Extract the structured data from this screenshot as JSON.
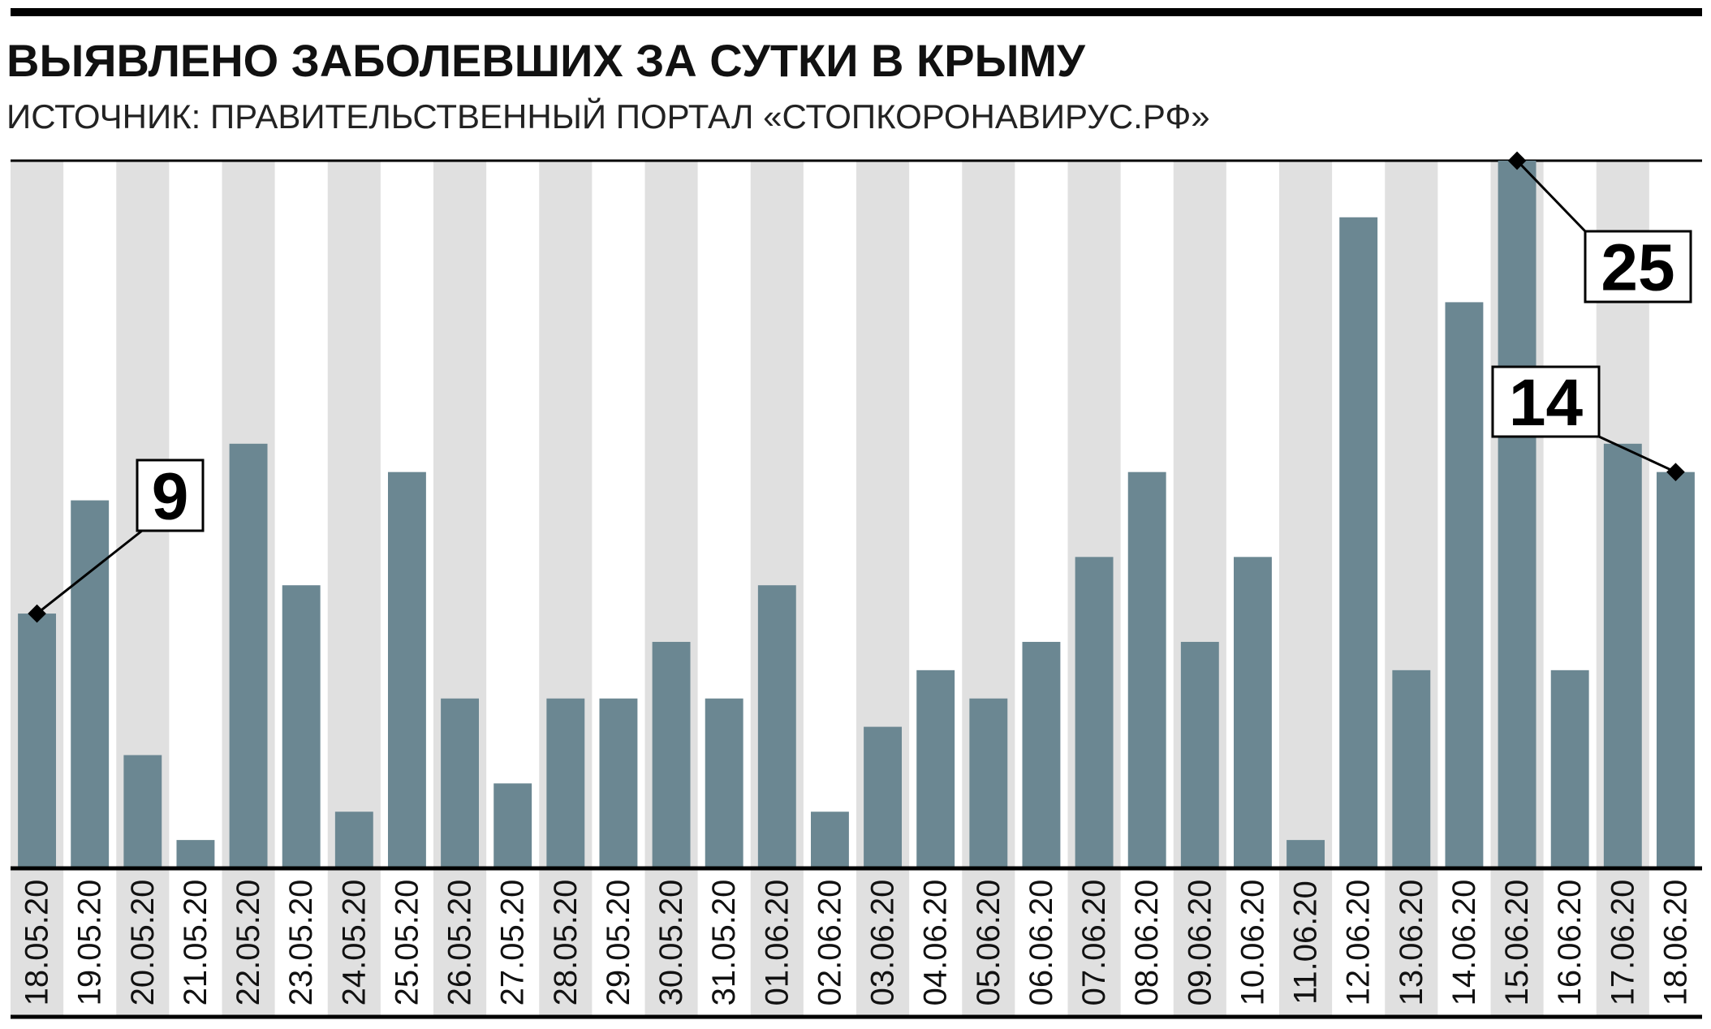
{
  "chart_data": {
    "type": "bar",
    "title": "ВЫЯВЛЕНО ЗАБОЛЕВШИХ ЗА СУТКИ В ",
    "title_bold": "КРЫМУ",
    "subtitle": "ИСТОЧНИК: ПРАВИТЕЛЬСТВЕННЫЙ ПОРТАЛ «СТОПКОРОНАВИРУС.РФ»",
    "categories": [
      "18.05.20",
      "19.05.20",
      "20.05.20",
      "21.05.20",
      "22.05.20",
      "23.05.20",
      "24.05.20",
      "25.05.20",
      "26.05.20",
      "27.05.20",
      "28.05.20",
      "29.05.20",
      "30.05.20",
      "31.05.20",
      "01.06.20",
      "02.06.20",
      "03.06.20",
      "04.06.20",
      "05.06.20",
      "06.06.20",
      "07.06.20",
      "08.06.20",
      "09.06.20",
      "10.06.20",
      "11.06.20",
      "12.06.20",
      "13.06.20",
      "14.06.20",
      "15.06.20",
      "16.06.20",
      "17.06.20",
      "18.06.20"
    ],
    "values": [
      9,
      13,
      4,
      1,
      15,
      10,
      2,
      14,
      6,
      3,
      6,
      6,
      8,
      6,
      10,
      2,
      5,
      7,
      6,
      8,
      11,
      14,
      8,
      11,
      1,
      23,
      7,
      20,
      25,
      7,
      15,
      14
    ],
    "color": "#6b8792",
    "ylim": [
      0,
      25
    ]
  }
}
